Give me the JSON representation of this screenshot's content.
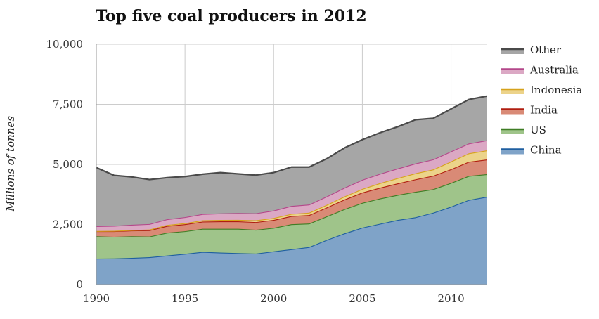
{
  "chart_data": {
    "type": "area",
    "stacked": true,
    "title": "Top five coal producers in 2012",
    "xlabel": "",
    "ylabel": "Millions of tonnes",
    "x": [
      1990,
      1991,
      1992,
      1993,
      1994,
      1995,
      1996,
      1997,
      1998,
      1999,
      2000,
      2001,
      2002,
      2003,
      2004,
      2005,
      2006,
      2007,
      2008,
      2009,
      2010,
      2011,
      2012
    ],
    "xticks": [
      "1990",
      "1995",
      "2000",
      "2005",
      "2010"
    ],
    "yticks": [
      "0",
      "2,500",
      "5,000",
      "7,500",
      "10,000"
    ],
    "ylim": [
      0,
      10000
    ],
    "grid": true,
    "legend_position": "right",
    "series": [
      {
        "name": "China",
        "color": "#7fa3c8",
        "line": "#1f5fa0",
        "values": [
          1080,
          1090,
          1110,
          1140,
          1210,
          1280,
          1360,
          1330,
          1310,
          1290,
          1380,
          1470,
          1560,
          1860,
          2130,
          2370,
          2530,
          2690,
          2800,
          2990,
          3240,
          3520,
          3650
        ]
      },
      {
        "name": "US",
        "color": "#9fc48a",
        "line": "#3f7d25",
        "values": [
          930,
          900,
          900,
          860,
          950,
          940,
          960,
          990,
          1010,
          990,
          980,
          1040,
          980,
          980,
          1010,
          1030,
          1050,
          1040,
          1060,
          980,
          990,
          1000,
          940
        ]
      },
      {
        "name": "India",
        "color": "#d98a76",
        "line": "#b01e10",
        "values": [
          210,
          230,
          240,
          260,
          280,
          290,
          300,
          310,
          310,
          320,
          330,
          340,
          350,
          370,
          400,
          430,
          450,
          480,
          520,
          560,
          570,
          590,
          610
        ]
      },
      {
        "name": "Indonesia",
        "color": "#ecd38a",
        "line": "#d6a21c",
        "values": [
          10,
          15,
          20,
          30,
          40,
          45,
          55,
          60,
          65,
          75,
          80,
          90,
          100,
          110,
          130,
          150,
          190,
          220,
          250,
          260,
          320,
          350,
          380
        ]
      },
      {
        "name": "Australia",
        "color": "#dba8c4",
        "line": "#b4478a",
        "values": [
          200,
          210,
          220,
          230,
          240,
          250,
          260,
          270,
          280,
          290,
          310,
          330,
          340,
          350,
          360,
          380,
          390,
          400,
          410,
          420,
          420,
          410,
          420
        ]
      },
      {
        "name": "Other",
        "color": "#a6a6a6",
        "line": "#4a4a4a",
        "values": [
          2440,
          2100,
          1990,
          1850,
          1730,
          1690,
          1660,
          1700,
          1630,
          1590,
          1580,
          1620,
          1560,
          1570,
          1660,
          1670,
          1710,
          1740,
          1820,
          1710,
          1770,
          1830,
          1840
        ]
      }
    ]
  }
}
